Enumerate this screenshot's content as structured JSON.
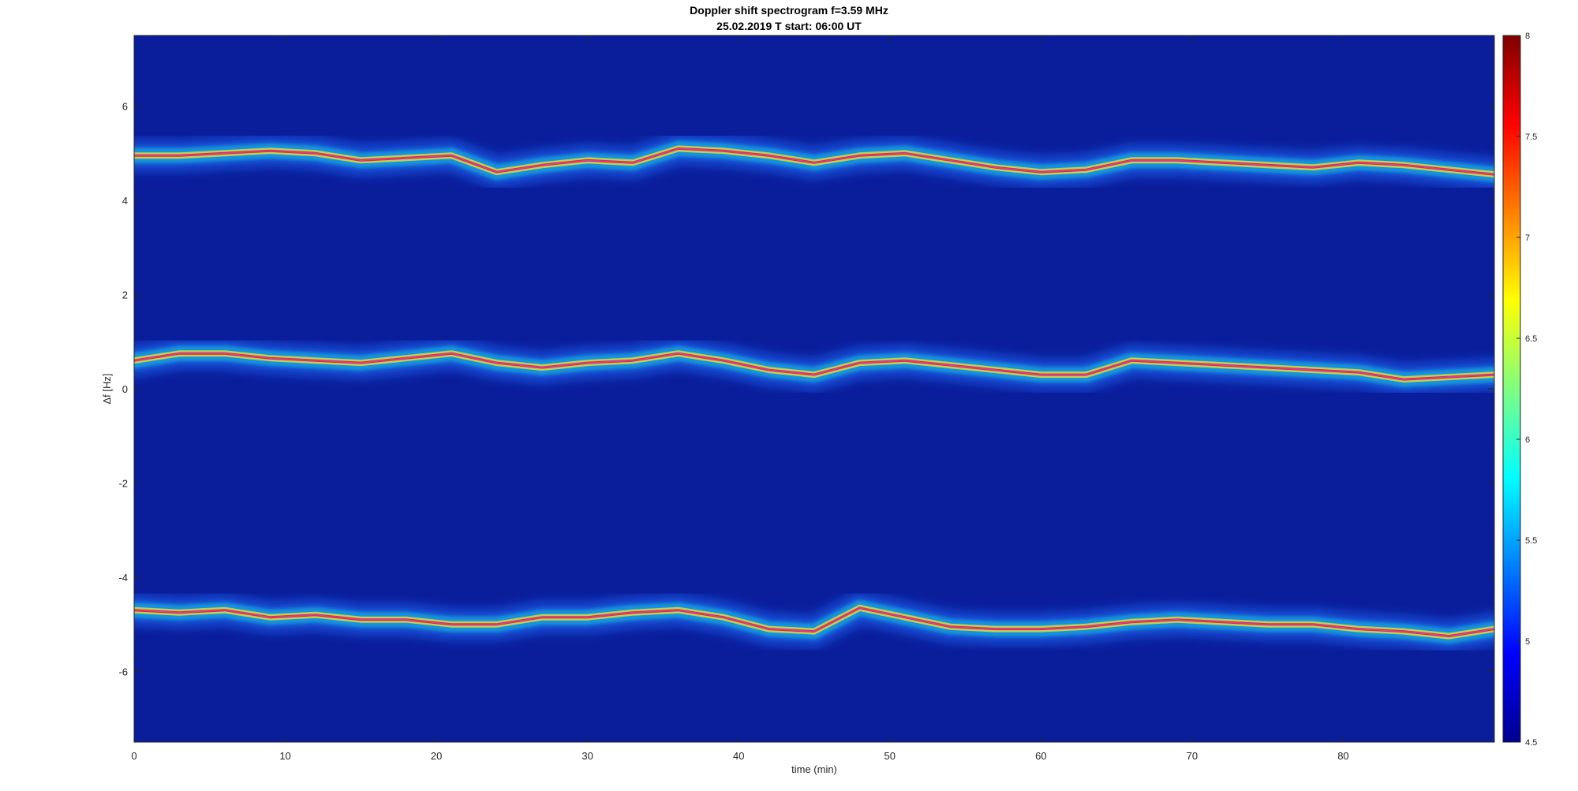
{
  "chart_data": {
    "type": "heatmap",
    "title": "Doppler shift spectrogram f=3.59 MHz",
    "subtitle": "25.02.2019    T start: 06:00 UT",
    "xlabel": "time (min)",
    "ylabel": "Δf [Hz]",
    "xlim": [
      0,
      90
    ],
    "ylim": [
      -7.5,
      7.5
    ],
    "xticks": [
      0,
      10,
      20,
      30,
      40,
      50,
      60,
      70,
      80
    ],
    "yticks": [
      -6,
      -4,
      -2,
      0,
      2,
      4,
      6
    ],
    "colorbar": {
      "colormap": "jet",
      "range": [
        4.5,
        8
      ],
      "ticks": [
        "4.5",
        "5",
        "5.5",
        "6",
        "6.5",
        "7",
        "7.5",
        "8"
      ]
    },
    "background_color": "#0a1e9c",
    "traces": [
      {
        "name": "",
        "x": [
          0,
          3,
          6,
          9,
          12,
          15,
          18,
          21,
          24,
          27,
          30,
          33,
          36,
          39,
          42,
          45,
          48,
          51,
          54,
          57,
          60,
          63,
          66,
          69,
          72,
          75,
          78,
          81,
          84,
          87,
          90
        ],
        "y": [
          4.95,
          4.95,
          5.0,
          5.05,
          5.0,
          4.85,
          4.9,
          4.95,
          4.6,
          4.75,
          4.85,
          4.8,
          5.1,
          5.05,
          4.95,
          4.8,
          4.95,
          5.0,
          4.85,
          4.7,
          4.6,
          4.65,
          4.85,
          4.85,
          4.8,
          4.75,
          4.7,
          4.8,
          4.75,
          4.65,
          4.55
        ]
      },
      {
        "name": "",
        "x": [
          0,
          3,
          6,
          9,
          12,
          15,
          18,
          21,
          24,
          27,
          30,
          33,
          36,
          39,
          42,
          45,
          48,
          51,
          54,
          57,
          60,
          63,
          66,
          69,
          72,
          75,
          78,
          81,
          84,
          87,
          90
        ],
        "y": [
          0.6,
          0.75,
          0.75,
          0.65,
          0.6,
          0.55,
          0.65,
          0.75,
          0.55,
          0.45,
          0.55,
          0.6,
          0.75,
          0.6,
          0.4,
          0.3,
          0.55,
          0.6,
          0.5,
          0.4,
          0.3,
          0.3,
          0.6,
          0.55,
          0.5,
          0.45,
          0.4,
          0.35,
          0.2,
          0.25,
          0.3
        ]
      },
      {
        "name": "",
        "x": [
          0,
          3,
          6,
          9,
          12,
          15,
          18,
          21,
          24,
          27,
          30,
          33,
          36,
          39,
          42,
          45,
          48,
          51,
          54,
          57,
          60,
          63,
          66,
          69,
          72,
          75,
          78,
          81,
          84,
          87,
          90
        ],
        "y": [
          -4.7,
          -4.75,
          -4.7,
          -4.85,
          -4.8,
          -4.9,
          -4.9,
          -5.0,
          -5.0,
          -4.85,
          -4.85,
          -4.75,
          -4.7,
          -4.85,
          -5.1,
          -5.15,
          -4.65,
          -4.85,
          -5.05,
          -5.1,
          -5.1,
          -5.05,
          -4.95,
          -4.9,
          -4.95,
          -5.0,
          -5.0,
          -5.1,
          -5.15,
          -5.25,
          -5.1
        ]
      }
    ]
  }
}
